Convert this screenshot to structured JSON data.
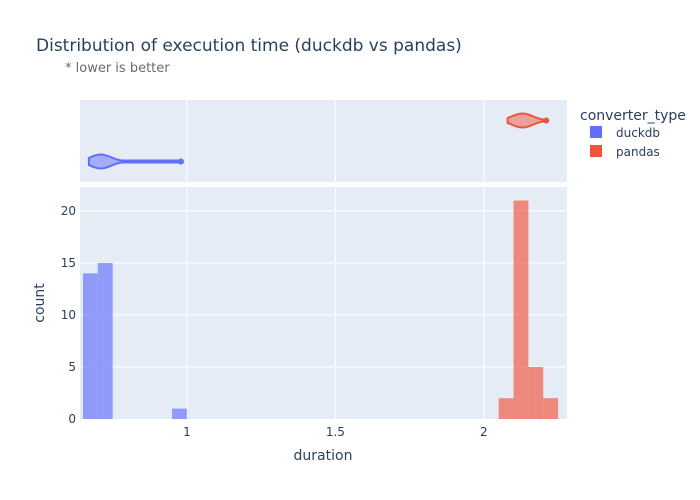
{
  "chart_data": {
    "type": "bar",
    "title": "Distribution of execution time (duckdb vs pandas)",
    "subtitle": "* lower is better",
    "xlabel": "duration",
    "ylabel": "count",
    "xlim": [
      0.64,
      2.28
    ],
    "ylim": [
      0,
      22.3
    ],
    "x_ticks": [
      {
        "value": 1,
        "label": "1"
      },
      {
        "value": 1.5,
        "label": "1.5"
      },
      {
        "value": 2,
        "label": "2"
      }
    ],
    "y_ticks": [
      {
        "value": 0,
        "label": "0"
      },
      {
        "value": 5,
        "label": "5"
      },
      {
        "value": 10,
        "label": "10"
      },
      {
        "value": 15,
        "label": "15"
      },
      {
        "value": 20,
        "label": "20"
      }
    ],
    "legend": {
      "title": "converter_type",
      "placement": "right",
      "items": [
        {
          "name": "duckdb",
          "color": "#636efa"
        },
        {
          "name": "pandas",
          "color": "#ef553b"
        }
      ]
    },
    "grid": true,
    "background": "#e5ecf6",
    "bin_width": 0.05,
    "series": [
      {
        "name": "duckdb",
        "color": "#636efa",
        "opacity": 0.65,
        "bins": [
          {
            "x0": 0.65,
            "x1": 0.7,
            "count": 14
          },
          {
            "x0": 0.7,
            "x1": 0.75,
            "count": 15
          },
          {
            "x0": 0.95,
            "x1": 1.0,
            "count": 1
          }
        ],
        "violin": {
          "min": 0.67,
          "max": 0.98,
          "mode": 0.71
        }
      },
      {
        "name": "pandas",
        "color": "#ef553b",
        "opacity": 0.65,
        "bins": [
          {
            "x0": 2.05,
            "x1": 2.1,
            "count": 2
          },
          {
            "x0": 2.1,
            "x1": 2.15,
            "count": 21
          },
          {
            "x0": 2.15,
            "x1": 2.2,
            "count": 5
          },
          {
            "x0": 2.2,
            "x1": 2.25,
            "count": 2
          }
        ],
        "violin": {
          "min": 2.08,
          "max": 2.21,
          "mode": 2.13
        }
      }
    ]
  }
}
